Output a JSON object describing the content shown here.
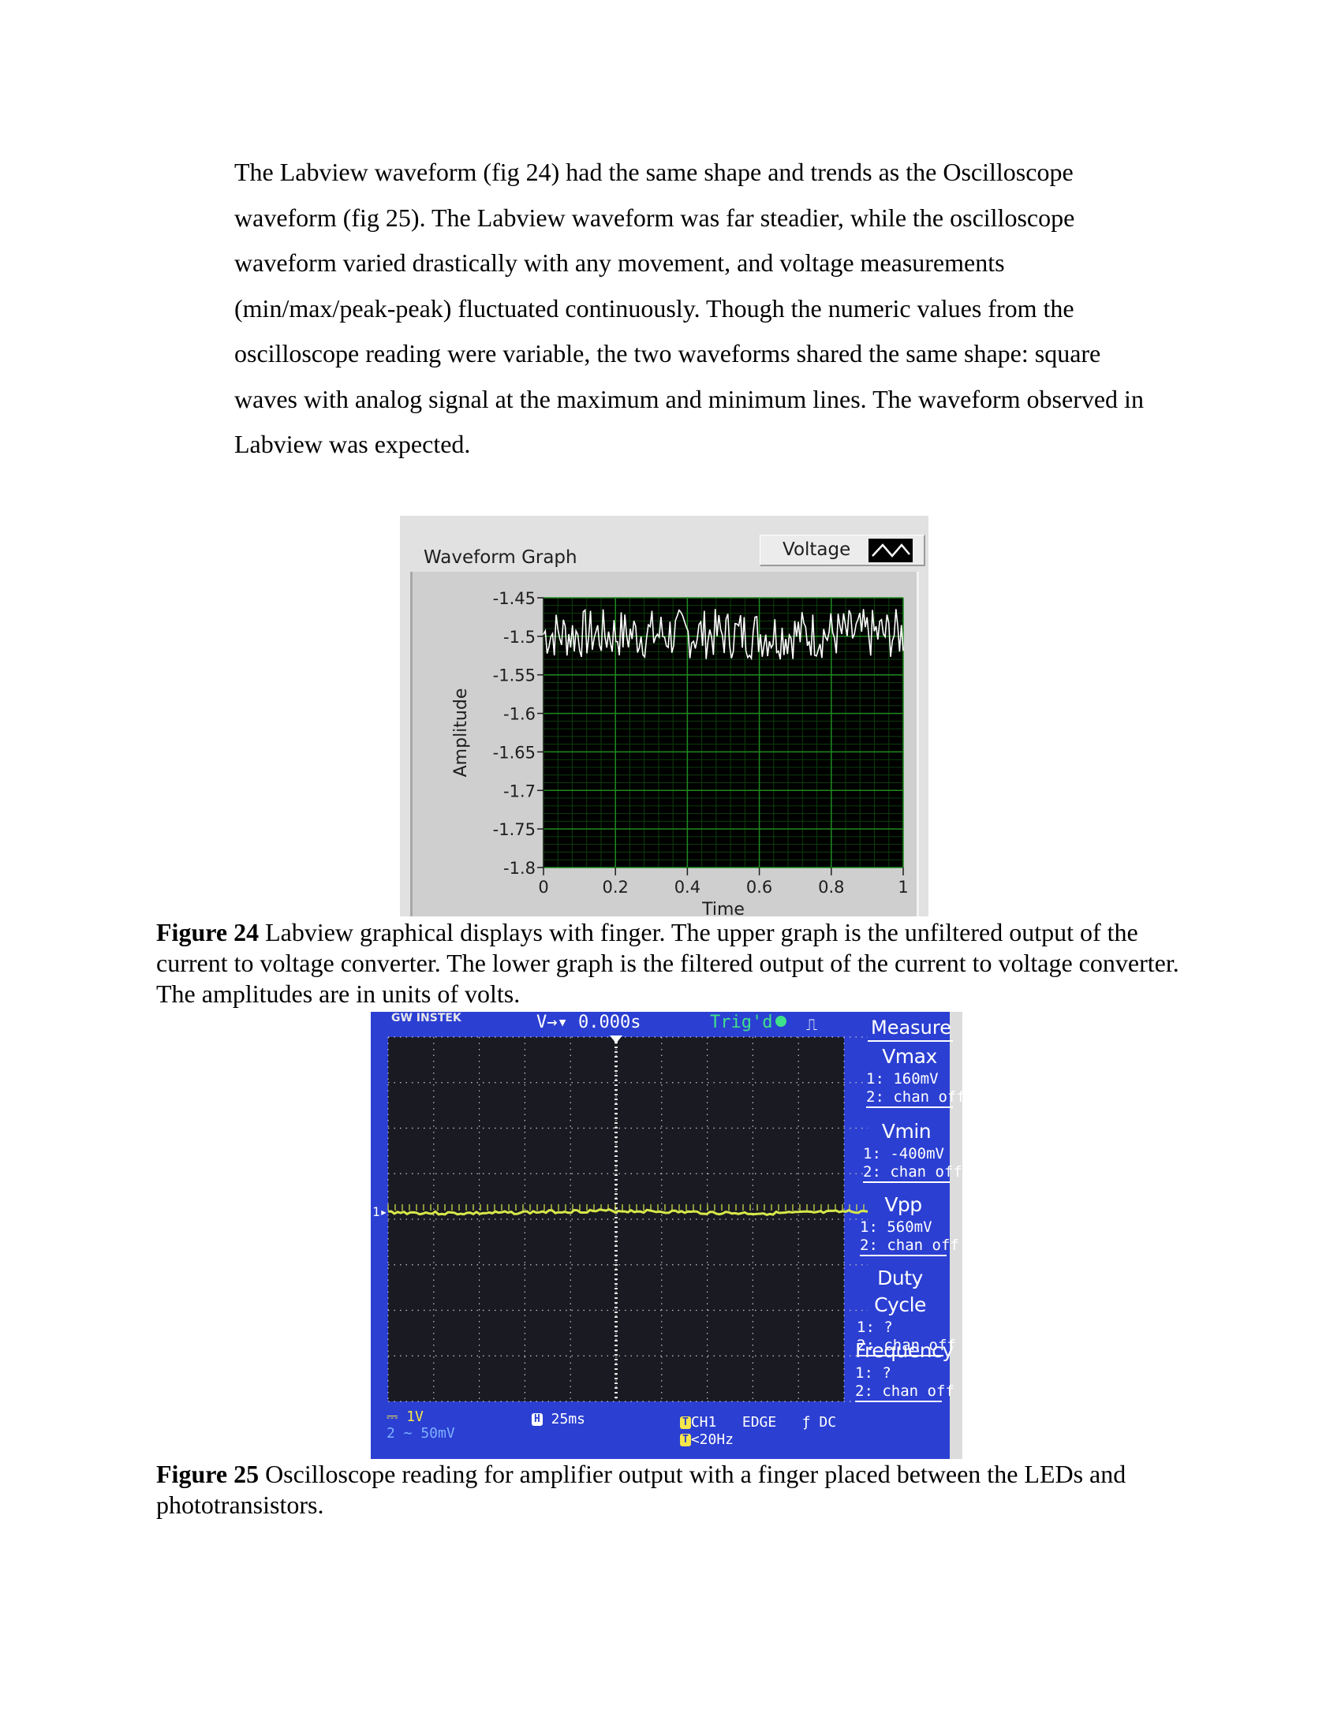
{
  "paragraph": "The Labview waveform (fig 24) had the same shape and trends as the Oscilloscope waveform (fig 25). The Labview waveform was far steadier, while the oscilloscope waveform varied drastically with any movement, and voltage measurements (min/max/peak-peak) fluctuated continuously. Though the numeric values from the oscilloscope reading were variable, the two waveforms shared the same shape: square waves with analog signal at the maximum and minimum lines. The waveform observed in Labview was expected.",
  "figure24": {
    "label": "Figure 24",
    "text": " Labview graphical displays with finger. The upper graph is the unfiltered output of the current to voltage converter. The lower graph is the filtered output of the current to voltage converter. The amplitudes are in units of volts."
  },
  "figure25": {
    "label": "Figure 25",
    "text": " Oscilloscope reading for amplifier output with a finger placed between the LEDs and phototransistors."
  },
  "chart_data": {
    "type": "line",
    "title": "Waveform Graph",
    "xlabel": "Time",
    "ylabel": "Amplitude",
    "xlim": [
      0,
      1
    ],
    "ylim": [
      -1.8,
      -1.45
    ],
    "x_ticks": [
      "0",
      "0.2",
      "0.4",
      "0.6",
      "0.8",
      "1"
    ],
    "y_ticks": [
      "-1.45",
      "-1.5",
      "-1.55",
      "-1.6",
      "-1.65",
      "-1.7",
      "-1.75",
      "-1.8"
    ],
    "grid": true,
    "legend": "top-right",
    "series": [
      {
        "name": "Voltage",
        "color": "#ffffff",
        "sample_count": 200,
        "center": -1.5,
        "range": [
          -1.53,
          -1.464
        ]
      }
    ],
    "colors": {
      "plot_bg": "#000000",
      "grid": "#1f8a1f",
      "trace": "#ffffff"
    }
  },
  "scope": {
    "brand": "GW INSTEK",
    "time_offset": "V→▾ 0.000s",
    "trigger_status": "Trig'd",
    "trigger_symbol": "⎍",
    "measure_title": "Measure",
    "measurements": [
      {
        "name": "Vmax",
        "ch1": "1: 160mV",
        "ch2": "2: chan off"
      },
      {
        "name": "Vmin",
        "ch1": "1: -400mV",
        "ch2": "2: chan off"
      },
      {
        "name": "Vpp",
        "ch1": "1: 560mV",
        "ch2": "2: chan off"
      },
      {
        "name": "Duty Cycle",
        "ch1": "1:    ?",
        "ch2": "2: chan off"
      },
      {
        "name": "Frequency",
        "ch1": "1:    ?",
        "ch2": "2: chan off"
      }
    ],
    "ch1_scale": "⎓ 1V",
    "ch2_scale": "2 ∼ 50mV",
    "timebase": "25ms",
    "trigger_source": "CH1",
    "trigger_type": "EDGE",
    "trigger_coupling": "ƒ DC",
    "bandwidth": "<20Hz",
    "ch1_marker": "1▸",
    "colors": {
      "screen": "#2b3fd2",
      "grid_area": "#1a1a22",
      "trace": "#d8e84a"
    }
  }
}
